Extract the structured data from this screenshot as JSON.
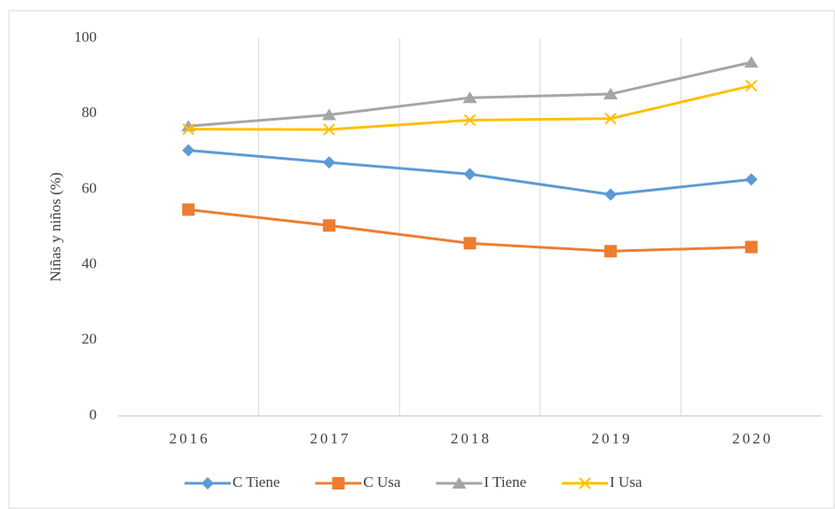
{
  "chart_data": {
    "type": "line",
    "y_label": "Niñas y niños (%)",
    "categories": [
      "2016",
      "2017",
      "2018",
      "2019",
      "2020"
    ],
    "series": [
      {
        "name": "C Tiene",
        "color": "#5b9bd5",
        "marker": "diamond",
        "values": [
          70.3,
          67.1,
          64.0,
          58.6,
          62.6
        ]
      },
      {
        "name": "C Usa",
        "color": "#ed7d31",
        "marker": "square",
        "values": [
          54.6,
          50.4,
          45.7,
          43.6,
          44.7
        ]
      },
      {
        "name": "I Tiene",
        "color": "#a5a5a5",
        "marker": "triangle",
        "values": [
          76.7,
          79.7,
          84.2,
          85.2,
          93.6
        ]
      },
      {
        "name": "I Usa",
        "color": "#ffc000",
        "marker": "x",
        "values": [
          75.9,
          75.8,
          78.3,
          78.7,
          87.4
        ]
      }
    ],
    "ylim": [
      0,
      100
    ],
    "yticks": [
      0,
      20,
      40,
      60,
      80,
      100
    ],
    "grid": true,
    "legend": "bottom"
  }
}
